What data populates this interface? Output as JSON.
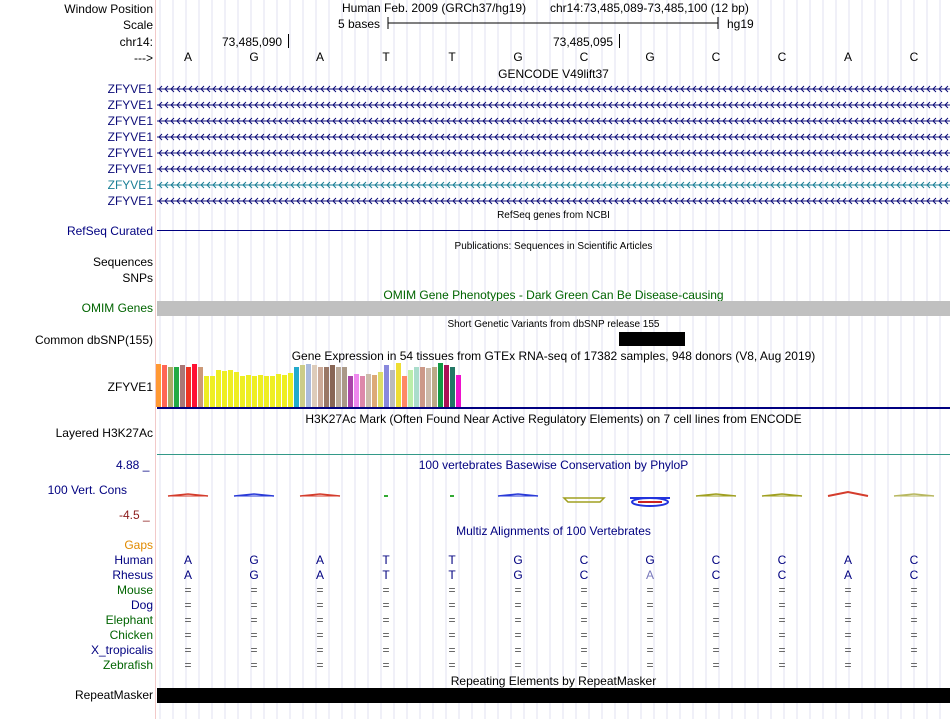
{
  "header": {
    "window_position_label": "Window Position",
    "scale_label": "Scale",
    "chrom_label": "chr14:",
    "strand_label": "--->",
    "assembly_text": "Human Feb. 2009 (GRCh37/hg19)",
    "position_text": "chr14:73,485,089-73,485,100 (12 bp)",
    "scale_text": "5 bases",
    "scale_db": "hg19",
    "tick1": "73,485,090",
    "tick2": "73,485,095"
  },
  "bases": [
    "A",
    "G",
    "A",
    "T",
    "T",
    "G",
    "C",
    "G",
    "C",
    "C",
    "A",
    "C"
  ],
  "gencode": {
    "title": "GENCODE V49lift37",
    "transcripts": [
      {
        "label": "ZFYVE1",
        "color": "#0c0c78"
      },
      {
        "label": "ZFYVE1",
        "color": "#0c0c78"
      },
      {
        "label": "ZFYVE1",
        "color": "#0c0c78"
      },
      {
        "label": "ZFYVE1",
        "color": "#0c0c78"
      },
      {
        "label": "ZFYVE1",
        "color": "#0c0c78"
      },
      {
        "label": "ZFYVE1",
        "color": "#0c0c78"
      },
      {
        "label": "ZFYVE1",
        "color": "#1a7f96"
      },
      {
        "label": "ZFYVE1",
        "color": "#0c0c78"
      }
    ]
  },
  "refseq": {
    "title": "RefSeq genes from NCBI",
    "label": "RefSeq Curated"
  },
  "publications": {
    "title": "Publications: Sequences in Scientific Articles",
    "label1": "Sequences",
    "label2": "SNPs"
  },
  "omim": {
    "title": "OMIM Gene Phenotypes - Dark Green Can Be Disease-causing",
    "label": "OMIM Genes"
  },
  "dbsnp": {
    "title": "Short Genetic Variants from dbSNP release 155",
    "label": "Common dbSNP(155)"
  },
  "gtex": {
    "title": "Gene Expression in 54 tissues from GTEx RNA-seq of 17382 samples, 948 donors (V8, Aug 2019)",
    "label": "ZFYVE1",
    "bars": [
      {
        "v": 0.98,
        "c": "#ff9933"
      },
      {
        "v": 0.95,
        "c": "#ff6655"
      },
      {
        "v": 0.92,
        "c": "#aaaa66"
      },
      {
        "v": 0.92,
        "c": "#22aa44"
      },
      {
        "v": 0.95,
        "c": "#aa7777"
      },
      {
        "v": 0.92,
        "c": "#ee3322"
      },
      {
        "v": 0.98,
        "c": "#ff1133"
      },
      {
        "v": 0.9,
        "c": "#cc9977"
      },
      {
        "v": 0.7,
        "c": "#eeee22"
      },
      {
        "v": 0.7,
        "c": "#eeee22"
      },
      {
        "v": 0.85,
        "c": "#eeee22"
      },
      {
        "v": 0.82,
        "c": "#eeee22"
      },
      {
        "v": 0.85,
        "c": "#eeee22"
      },
      {
        "v": 0.8,
        "c": "#eeee22"
      },
      {
        "v": 0.7,
        "c": "#eeee22"
      },
      {
        "v": 0.72,
        "c": "#eeee22"
      },
      {
        "v": 0.7,
        "c": "#eeee22"
      },
      {
        "v": 0.72,
        "c": "#eeee22"
      },
      {
        "v": 0.7,
        "c": "#eeee22"
      },
      {
        "v": 0.7,
        "c": "#eeee22"
      },
      {
        "v": 0.74,
        "c": "#eeee22"
      },
      {
        "v": 0.72,
        "c": "#eeee22"
      },
      {
        "v": 0.78,
        "c": "#eeee22"
      },
      {
        "v": 0.92,
        "c": "#22aacc"
      },
      {
        "v": 0.95,
        "c": "#cccc88"
      },
      {
        "v": 0.98,
        "c": "#aabbdd"
      },
      {
        "v": 0.95,
        "c": "#ddccbb"
      },
      {
        "v": 0.92,
        "c": "#ccaa99"
      },
      {
        "v": 0.92,
        "c": "#997766"
      },
      {
        "v": 0.95,
        "c": "#886655"
      },
      {
        "v": 0.92,
        "c": "#bbaa99"
      },
      {
        "v": 0.92,
        "c": "#aa9988"
      },
      {
        "v": 0.7,
        "c": "#aa44aa"
      },
      {
        "v": 0.75,
        "c": "#ee88ee"
      },
      {
        "v": 0.7,
        "c": "#dd88aa"
      },
      {
        "v": 0.75,
        "c": "#ccbbaa"
      },
      {
        "v": 0.72,
        "c": "#ddaa77"
      },
      {
        "v": 0.8,
        "c": "#dddd66"
      },
      {
        "v": 0.95,
        "c": "#8888dd"
      },
      {
        "v": 0.85,
        "c": "#bbbbbb"
      },
      {
        "v": 1.0,
        "c": "#eedd33"
      },
      {
        "v": 0.7,
        "c": "#ff8866"
      },
      {
        "v": 0.85,
        "c": "#bbeeaa"
      },
      {
        "v": 0.9,
        "c": "#aaddcc"
      },
      {
        "v": 0.92,
        "c": "#cc9988"
      },
      {
        "v": 0.88,
        "c": "#ccbbaa"
      },
      {
        "v": 0.92,
        "c": "#bbaa88"
      },
      {
        "v": 1.0,
        "c": "#119944"
      },
      {
        "v": 0.95,
        "c": "#aa1155"
      },
      {
        "v": 0.92,
        "c": "#227766"
      },
      {
        "v": 0.72,
        "c": "#ee11cc"
      }
    ]
  },
  "h3k27ac": {
    "title": "H3K27Ac Mark (Often Found Near Active Regulatory Elements) on 7 cell lines from ENCODE",
    "label": "Layered H3K27Ac"
  },
  "phylop": {
    "title": "100 vertebrates Basewise Conservation by PhyloP",
    "label": "100 Vert. Cons",
    "max": "4.88 _",
    "min": "-4.5 _",
    "marks": [
      {
        "base": 0,
        "dir": "up",
        "color": "#d43c2c"
      },
      {
        "base": 1,
        "dir": "up",
        "color": "#2a3bd8"
      },
      {
        "base": 2,
        "dir": "up",
        "color": "#d43c2c"
      },
      {
        "base": 3,
        "dir": "dot",
        "color": "#33aa33"
      },
      {
        "base": 4,
        "dir": "dot",
        "color": "#33aa33"
      },
      {
        "base": 5,
        "dir": "up",
        "color": "#2a3bd8"
      },
      {
        "base": 6,
        "dir": "down",
        "color": "#a0a020"
      },
      {
        "base": 7,
        "dir": "ring",
        "color": "#2233dd"
      },
      {
        "base": 8,
        "dir": "up",
        "color": "#a0a020"
      },
      {
        "base": 9,
        "dir": "up",
        "color": "#a0a020"
      },
      {
        "base": 10,
        "dir": "peak",
        "color": "#d43c2c"
      },
      {
        "base": 11,
        "dir": "up",
        "color": "#b8b860"
      }
    ]
  },
  "multiz": {
    "title": "Multiz Alignments of 100 Vertebrates",
    "gaps_label": "Gaps",
    "species": [
      {
        "name": "Human",
        "row": [
          "A",
          "G",
          "A",
          "T",
          "T",
          "G",
          "C",
          "G",
          "C",
          "C",
          "A",
          "C"
        ]
      },
      {
        "name": "Rhesus",
        "row": [
          "A",
          "G",
          "A",
          "T",
          "T",
          "G",
          "C",
          "A",
          "C",
          "C",
          "A",
          "C"
        ]
      },
      {
        "name": "Mouse",
        "row": [
          "=",
          "=",
          "=",
          "=",
          "=",
          "=",
          "=",
          "=",
          "=",
          "=",
          "=",
          "="
        ]
      },
      {
        "name": "Dog",
        "row": [
          "=",
          "=",
          "=",
          "=",
          "=",
          "=",
          "=",
          "=",
          "=",
          "=",
          "=",
          "="
        ]
      },
      {
        "name": "Elephant",
        "row": [
          "=",
          "=",
          "=",
          "=",
          "=",
          "=",
          "=",
          "=",
          "=",
          "=",
          "=",
          "="
        ]
      },
      {
        "name": "Chicken",
        "row": [
          "=",
          "=",
          "=",
          "=",
          "=",
          "=",
          "=",
          "=",
          "=",
          "=",
          "=",
          "="
        ]
      },
      {
        "name": "X_tropicalis",
        "row": [
          "=",
          "=",
          "=",
          "=",
          "=",
          "=",
          "=",
          "=",
          "=",
          "=",
          "=",
          "="
        ]
      },
      {
        "name": "Zebrafish",
        "row": [
          "=",
          "=",
          "=",
          "=",
          "=",
          "=",
          "=",
          "=",
          "=",
          "=",
          "=",
          "="
        ]
      }
    ]
  },
  "repeatmasker": {
    "title": "Repeating Elements by RepeatMasker",
    "label": "RepeatMasker"
  },
  "colors": {
    "navy": "#000080",
    "green": "#006400",
    "orange": "#e08a00",
    "gray": "#c0c0c0"
  }
}
